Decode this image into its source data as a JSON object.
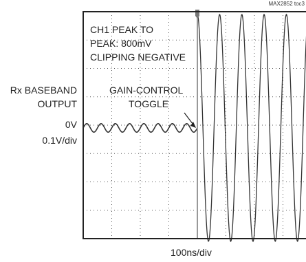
{
  "chart_data": {
    "type": "line",
    "doc_tag": "MAX2852 toc3",
    "annotation_top": [
      "CH1 PEAK TO",
      "PEAK: 800mV",
      "CLIPPING NEGATIVE"
    ],
    "annotation_marker": [
      "GAIN-CONTROL",
      "TOGGLE"
    ],
    "ylabel": [
      "Rx BASEBAND",
      "OUTPUT"
    ],
    "zero_label": "0V",
    "yscale_label": "0.1V/div",
    "xlabel": "100ns/div",
    "grid": true,
    "trace_color": "#333333",
    "series": [
      {
        "segments": [
          {
            "x_div": [
              0,
              4.0
            ],
            "shape": "sine",
            "amplitude_v": 0.015,
            "period_div": 0.5
          },
          {
            "x_div": [
              4.0,
              8.0
            ],
            "shape": "sine",
            "amplitude_v": 0.4,
            "period_div": 0.78,
            "peak_to_peak_v": 0.8
          }
        ]
      }
    ]
  }
}
